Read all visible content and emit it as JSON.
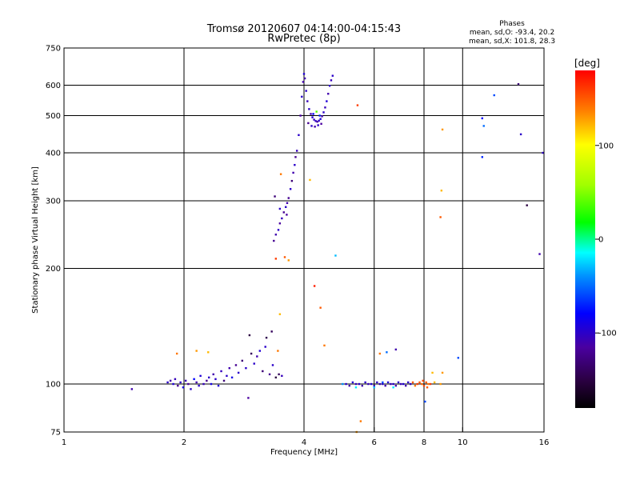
{
  "chart_data": {
    "type": "scatter",
    "title": "Tromsø 20120607 04:14:00-04:15:43",
    "subtitle": "RwPretec (8p)",
    "xlabel": "Frequency [MHz]",
    "ylabel": "Stationary phase Virtual Height [km]",
    "xscale": "log",
    "yscale": "log",
    "xlim": [
      1,
      16
    ],
    "ylim": [
      75,
      750
    ],
    "xticks": [
      1,
      2,
      4,
      6,
      8,
      10,
      16
    ],
    "yticks": [
      75,
      100,
      200,
      300,
      400,
      500,
      600,
      750
    ],
    "grid": true,
    "phases": {
      "title": "Phases",
      "line_o": "mean, sd,O: -93.4, 20.2",
      "line_x": "mean, sd,X: 101.8, 28.3"
    },
    "colorbar": {
      "label": "[deg]",
      "range": [
        -180,
        180
      ],
      "ticks": [
        100,
        0,
        -100
      ]
    },
    "series": [
      {
        "name": "echoes",
        "points": [
          [
            1.48,
            97,
            -110
          ],
          [
            1.82,
            101,
            -100
          ],
          [
            1.85,
            102,
            -110
          ],
          [
            1.88,
            100,
            -95
          ],
          [
            1.9,
            103,
            -105
          ],
          [
            1.93,
            99,
            -120
          ],
          [
            1.96,
            101,
            -100
          ],
          [
            1.99,
            98,
            -90
          ],
          [
            2.02,
            102,
            -105
          ],
          [
            2.05,
            100,
            -115
          ],
          [
            2.08,
            97,
            -100
          ],
          [
            2.12,
            103,
            -80
          ],
          [
            2.15,
            101,
            -110
          ],
          [
            2.18,
            99,
            -100
          ],
          [
            2.2,
            105,
            -95
          ],
          [
            2.24,
            100,
            -105
          ],
          [
            2.28,
            102,
            -120
          ],
          [
            2.31,
            104,
            -100
          ],
          [
            2.34,
            100,
            -90
          ],
          [
            2.37,
            106,
            -110
          ],
          [
            2.4,
            103,
            -100
          ],
          [
            2.44,
            99,
            -95
          ],
          [
            2.48,
            108,
            -105
          ],
          [
            2.52,
            102,
            -130
          ],
          [
            2.56,
            105,
            -100
          ],
          [
            2.6,
            110,
            -110
          ],
          [
            2.64,
            104,
            -90
          ],
          [
            2.7,
            112,
            -120
          ],
          [
            2.74,
            107,
            -100
          ],
          [
            2.8,
            115,
            -130
          ],
          [
            2.86,
            110,
            -100
          ],
          [
            2.9,
            92,
            -115
          ],
          [
            2.95,
            120,
            -140
          ],
          [
            3.0,
            113,
            -100
          ],
          [
            3.05,
            118,
            -110
          ],
          [
            3.1,
            122,
            -95
          ],
          [
            3.15,
            108,
            -130
          ],
          [
            3.2,
            125,
            -100
          ],
          [
            3.28,
            106,
            -120
          ],
          [
            3.34,
            112,
            -100
          ],
          [
            3.4,
            104,
            -150
          ],
          [
            3.46,
            106,
            -140
          ],
          [
            3.52,
            105,
            -105
          ],
          [
            2.92,
            134,
            -150
          ],
          [
            3.22,
            132,
            -145
          ],
          [
            3.32,
            137,
            -140
          ],
          [
            3.36,
            236,
            -120
          ],
          [
            3.4,
            245,
            -110
          ],
          [
            3.45,
            252,
            -100
          ],
          [
            3.48,
            262,
            -115
          ],
          [
            3.52,
            270,
            -105
          ],
          [
            3.56,
            280,
            -120
          ],
          [
            3.6,
            289,
            -100
          ],
          [
            3.63,
            296,
            -110
          ],
          [
            3.66,
            305,
            -120
          ],
          [
            3.7,
            322,
            -100
          ],
          [
            3.73,
            338,
            -130
          ],
          [
            3.76,
            355,
            -110
          ],
          [
            3.79,
            372,
            -100
          ],
          [
            3.81,
            390,
            -120
          ],
          [
            3.84,
            405,
            -105
          ],
          [
            3.48,
            286,
            -100
          ],
          [
            3.38,
            308,
            -130
          ],
          [
            3.62,
            276,
            -115
          ],
          [
            3.88,
            445,
            -100
          ],
          [
            3.92,
            500,
            -115
          ],
          [
            3.95,
            560,
            -100
          ],
          [
            3.98,
            612,
            -110
          ],
          [
            4.0,
            642,
            -95
          ],
          [
            4.02,
            625,
            -110
          ],
          [
            4.05,
            580,
            -100
          ],
          [
            4.08,
            545,
            -105
          ],
          [
            4.12,
            520,
            -100
          ],
          [
            4.16,
            505,
            -110
          ],
          [
            4.2,
            495,
            -95
          ],
          [
            4.24,
            488,
            -105
          ],
          [
            4.28,
            484,
            -100
          ],
          [
            4.32,
            482,
            -115
          ],
          [
            4.36,
            485,
            -100
          ],
          [
            4.4,
            490,
            -95
          ],
          [
            4.44,
            498,
            -110
          ],
          [
            4.48,
            510,
            -100
          ],
          [
            4.52,
            525,
            -105
          ],
          [
            4.56,
            545,
            -95
          ],
          [
            4.6,
            570,
            -110
          ],
          [
            4.64,
            598,
            -100
          ],
          [
            4.68,
            618,
            -105
          ],
          [
            4.72,
            635,
            -100
          ],
          [
            4.1,
            478,
            -120
          ],
          [
            4.18,
            470,
            -100
          ],
          [
            4.26,
            468,
            -110
          ],
          [
            4.34,
            472,
            -100
          ],
          [
            4.42,
            476,
            -115
          ],
          [
            4.22,
            505,
            -80
          ],
          [
            4.38,
            500,
            -70
          ],
          [
            4.3,
            512,
            40
          ],
          [
            4.14,
            340,
            120
          ],
          [
            3.5,
            352,
            140
          ],
          [
            3.58,
            214,
            150
          ],
          [
            3.66,
            210,
            130
          ],
          [
            3.4,
            212,
            160
          ],
          [
            4.25,
            180,
            170
          ],
          [
            4.4,
            158,
            150
          ],
          [
            3.48,
            152,
            120
          ],
          [
            3.44,
            122,
            140
          ],
          [
            4.8,
            216,
            -30
          ],
          [
            5.45,
            532,
            160
          ],
          [
            4.5,
            126,
            140
          ],
          [
            1.92,
            120,
            140
          ],
          [
            2.15,
            122,
            130
          ],
          [
            2.3,
            121,
            120
          ],
          [
            5.1,
            100,
            -100
          ],
          [
            5.2,
            99,
            -110
          ],
          [
            5.3,
            101,
            -95
          ],
          [
            5.4,
            100,
            -105
          ],
          [
            5.5,
            100,
            -100
          ],
          [
            5.6,
            99,
            -110
          ],
          [
            5.7,
            101,
            -100
          ],
          [
            5.8,
            100,
            -105
          ],
          [
            5.9,
            100,
            -95
          ],
          [
            6.0,
            99,
            -110
          ],
          [
            6.1,
            101,
            -100
          ],
          [
            6.2,
            100,
            -105
          ],
          [
            6.3,
            100,
            -100
          ],
          [
            6.4,
            99,
            -110
          ],
          [
            6.5,
            101,
            -95
          ],
          [
            6.6,
            100,
            -105
          ],
          [
            6.7,
            100,
            -100
          ],
          [
            6.8,
            99,
            -110
          ],
          [
            6.9,
            101,
            -100
          ],
          [
            7.0,
            100,
            -105
          ],
          [
            7.1,
            100,
            -95
          ],
          [
            7.2,
            99,
            -110
          ],
          [
            7.3,
            101,
            -100
          ],
          [
            7.4,
            100,
            -105
          ],
          [
            7.5,
            101,
            150
          ],
          [
            7.6,
            99,
            140
          ],
          [
            7.7,
            100,
            160
          ],
          [
            7.8,
            101,
            150
          ],
          [
            7.9,
            100,
            145
          ],
          [
            8.0,
            99,
            155
          ],
          [
            8.1,
            101,
            150
          ],
          [
            8.2,
            100,
            140
          ],
          [
            8.3,
            100,
            160
          ],
          [
            8.5,
            101,
            120
          ],
          [
            8.8,
            100,
            130
          ],
          [
            7.95,
            102,
            155
          ],
          [
            8.15,
            98,
            150
          ],
          [
            5.0,
            100,
            -40
          ],
          [
            5.4,
            98,
            -20
          ],
          [
            6.0,
            98,
            -30
          ],
          [
            6.3,
            101,
            -60
          ],
          [
            6.7,
            98,
            -20
          ],
          [
            5.55,
            80,
            140
          ],
          [
            5.42,
            75,
            130
          ],
          [
            8.05,
            90,
            -60
          ],
          [
            6.8,
            123,
            -110
          ],
          [
            6.45,
            121,
            -50
          ],
          [
            6.2,
            120,
            140
          ],
          [
            8.4,
            107,
            120
          ],
          [
            8.9,
            107,
            130
          ],
          [
            9.75,
            117,
            -60
          ],
          [
            8.9,
            460,
            130
          ],
          [
            8.85,
            319,
            120
          ],
          [
            8.8,
            272,
            150
          ],
          [
            11.2,
            390,
            -70
          ],
          [
            11.3,
            470,
            -50
          ],
          [
            11.2,
            492,
            -80
          ],
          [
            12.0,
            565,
            -60
          ],
          [
            13.8,
            604,
            -130
          ],
          [
            14.0,
            447,
            -100
          ],
          [
            14.5,
            292,
            -150
          ],
          [
            15.6,
            218,
            -110
          ],
          [
            15.9,
            400,
            -100
          ]
        ]
      }
    ]
  }
}
